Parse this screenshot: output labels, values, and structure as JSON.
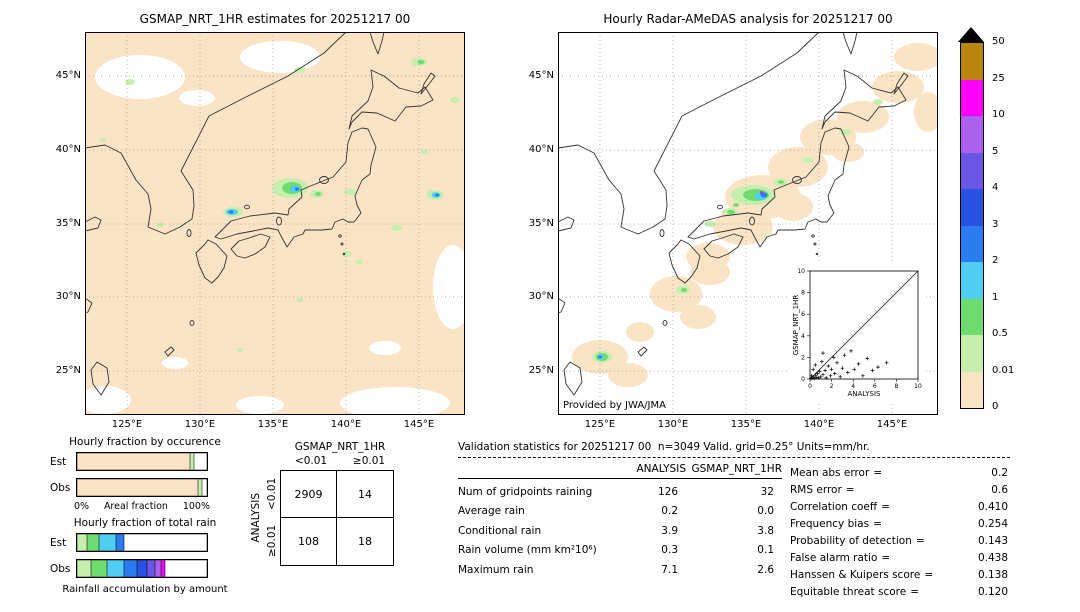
{
  "figure": {
    "left_map": {
      "title": "GSMAP_NRT_1HR estimates for 20251217 00",
      "lat_ticks": [
        "45°N",
        "40°N",
        "35°N",
        "30°N",
        "25°N"
      ],
      "lon_ticks": [
        "125°E",
        "130°E",
        "135°E",
        "140°E",
        "145°E"
      ]
    },
    "right_map": {
      "title": "Hourly Radar-AMeDAS analysis for 20251217 00",
      "credit": "Provided by JWA/JMA",
      "lat_ticks": [
        "45°N",
        "40°N",
        "35°N",
        "30°N",
        "25°N"
      ],
      "lon_ticks": [
        "125°E",
        "130°E",
        "135°E",
        "140°E",
        "145°E"
      ]
    },
    "colorbar": {
      "units": "mm/hr",
      "tick_labels": [
        "50",
        "25",
        "10",
        "5",
        "4",
        "3",
        "2",
        "1",
        "0.5",
        "0.01",
        "0"
      ],
      "segment_colors_top_to_bottom": [
        "#b8860b",
        "#fb00fb",
        "#ad5fee",
        "#6b57e3",
        "#2951e3",
        "#2b7cf0",
        "#4fcdf2",
        "#6fdc6f",
        "#c6efae",
        "#fbe3c5"
      ]
    }
  },
  "contingency": {
    "title": "GSMAP_NRT_1HR",
    "col_labels": [
      "<0.01",
      "≥0.01"
    ],
    "row_axis_label": "ANALYSIS",
    "row_labels": [
      "<0.01",
      "≥0.01"
    ],
    "cells": [
      [
        "2909",
        "14"
      ],
      [
        "108",
        "18"
      ]
    ]
  },
  "stats": {
    "title": "Validation statistics for 20251217 00  n=3049 Valid. grid=0.25° Units=mm/hr.",
    "table": {
      "col_headers": [
        "ANALYSIS",
        "GSMAP_NRT_1HR"
      ],
      "rows": [
        {
          "label": "Num of gridpoints raining",
          "analysis": "126",
          "gsmap": "32"
        },
        {
          "label": "Average rain",
          "analysis": "0.2",
          "gsmap": "0.0"
        },
        {
          "label": "Conditional rain",
          "analysis": "3.9",
          "gsmap": "3.8"
        },
        {
          "label": "Rain volume (mm km²10⁶)",
          "analysis": "0.3",
          "gsmap": "0.1"
        },
        {
          "label": "Maximum rain",
          "analysis": "7.1",
          "gsmap": "2.6"
        }
      ]
    },
    "metrics": [
      {
        "label": "Mean abs error",
        "value": "0.2"
      },
      {
        "label": "RMS error",
        "value": "0.6"
      },
      {
        "label": "Correlation coeff",
        "value": "0.410"
      },
      {
        "label": "Frequency bias",
        "value": "0.254"
      },
      {
        "label": "Probability of detection",
        "value": "0.143"
      },
      {
        "label": "False alarm ratio",
        "value": "0.438"
      },
      {
        "label": "Hanssen & Kuipers score",
        "value": "0.138"
      },
      {
        "label": "Equitable threat score",
        "value": "0.120"
      }
    ]
  },
  "chart_data": [
    {
      "id": "occurrence_bars",
      "type": "bar",
      "title": "Hourly fraction by occurence",
      "xlabel": "Areal fraction",
      "xlim_labels": [
        "0%",
        "100%"
      ],
      "series": [
        {
          "name": "Est",
          "segments": [
            {
              "color": "#fbe3c5",
              "pct": 87
            },
            {
              "color": "#c6efae",
              "pct": 3
            },
            {
              "color": "#ffffff",
              "pct": 10
            }
          ]
        },
        {
          "name": "Obs",
          "segments": [
            {
              "color": "#fbe3c5",
              "pct": 93
            },
            {
              "color": "#c6efae",
              "pct": 3
            },
            {
              "color": "#ffffff",
              "pct": 4
            }
          ]
        }
      ]
    },
    {
      "id": "totalrain_bars",
      "type": "bar",
      "title": "Hourly fraction of total rain",
      "xlabel": "Rainfall accumulation by amount",
      "series": [
        {
          "name": "Est",
          "segments": [
            {
              "color": "#c6efae",
              "pct": 8
            },
            {
              "color": "#6fdc6f",
              "pct": 9
            },
            {
              "color": "#4fcdf2",
              "pct": 13
            },
            {
              "color": "#2b7cf0",
              "pct": 6
            },
            {
              "color": "#ffffff",
              "pct": 64
            }
          ]
        },
        {
          "name": "Obs",
          "segments": [
            {
              "color": "#c6efae",
              "pct": 11
            },
            {
              "color": "#6fdc6f",
              "pct": 12
            },
            {
              "color": "#4fcdf2",
              "pct": 13
            },
            {
              "color": "#2b7cf0",
              "pct": 10
            },
            {
              "color": "#2951e3",
              "pct": 8
            },
            {
              "color": "#6b57e3",
              "pct": 6
            },
            {
              "color": "#ad5fee",
              "pct": 5
            },
            {
              "color": "#fb00fb",
              "pct": 3
            },
            {
              "color": "#ffffff",
              "pct": 32
            }
          ]
        }
      ]
    },
    {
      "id": "inset_scatter",
      "type": "scatter",
      "xlabel": "ANALYSIS",
      "ylabel": "GSMAP_NRT_1HR",
      "xlim": [
        0,
        10
      ],
      "ylim": [
        0,
        10
      ],
      "tick_labels": [
        "0",
        "2",
        "4",
        "6",
        "8",
        "10"
      ],
      "points": [
        [
          0.1,
          0.05
        ],
        [
          0.15,
          0.3
        ],
        [
          0.2,
          0.1
        ],
        [
          0.3,
          0.2
        ],
        [
          0.3,
          0.9
        ],
        [
          0.4,
          0.05
        ],
        [
          0.5,
          0.35
        ],
        [
          0.5,
          1.3
        ],
        [
          0.6,
          0.15
        ],
        [
          0.7,
          0.5
        ],
        [
          0.8,
          0.1
        ],
        [
          0.9,
          0.7
        ],
        [
          1.0,
          0.2
        ],
        [
          1.1,
          1.6
        ],
        [
          1.2,
          0.4
        ],
        [
          1.2,
          2.4
        ],
        [
          1.4,
          0.8
        ],
        [
          1.5,
          0.1
        ],
        [
          1.7,
          1.2
        ],
        [
          1.9,
          0.3
        ],
        [
          2.0,
          0.9
        ],
        [
          2.2,
          2.0
        ],
        [
          2.3,
          0.5
        ],
        [
          2.5,
          1.5
        ],
        [
          2.8,
          0.2
        ],
        [
          3.0,
          1.0
        ],
        [
          3.2,
          2.2
        ],
        [
          3.5,
          0.6
        ],
        [
          3.8,
          2.6
        ],
        [
          4.1,
          0.9
        ],
        [
          4.5,
          1.4
        ],
        [
          4.9,
          0.3
        ],
        [
          5.3,
          1.9
        ],
        [
          5.8,
          0.8
        ],
        [
          6.3,
          1.1
        ],
        [
          7.1,
          1.5
        ]
      ]
    },
    {
      "id": "contingency_matrix",
      "type": "table",
      "title": "GSMAP_NRT_1HR",
      "row_axis": "ANALYSIS",
      "columns": [
        "<0.01",
        "≥0.01"
      ],
      "rows": [
        "<0.01",
        "≥0.01"
      ],
      "values": [
        [
          2909,
          14
        ],
        [
          108,
          18
        ]
      ]
    }
  ]
}
